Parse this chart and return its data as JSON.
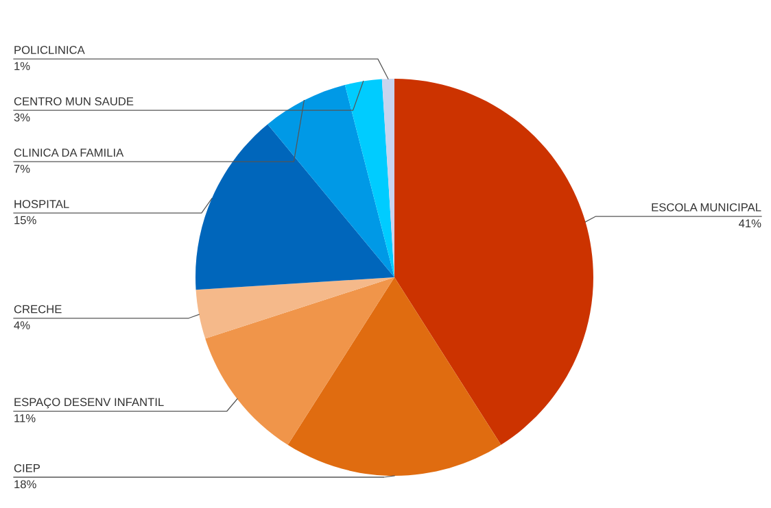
{
  "chart_data": {
    "type": "pie",
    "categories": [
      "ESCOLA MUNICIPAL",
      "CIEP",
      "ESPAÇO DESENV INFANTIL",
      "CRECHE",
      "HOSPITAL",
      "CLINICA DA FAMILIA",
      "CENTRO MUN SAUDE",
      "POLICLINICA"
    ],
    "values": [
      41,
      18,
      11,
      4,
      15,
      7,
      3,
      1
    ],
    "colors": [
      "#cc3300",
      "#e06c10",
      "#f0954a",
      "#f5b98a",
      "#0066bb",
      "#0099e6",
      "#00ccff",
      "#c8d4ee"
    ],
    "value_labels": [
      "41%",
      "18%",
      "11%",
      "4%",
      "15%",
      "7%",
      "3%",
      "1%"
    ],
    "legend": false
  }
}
